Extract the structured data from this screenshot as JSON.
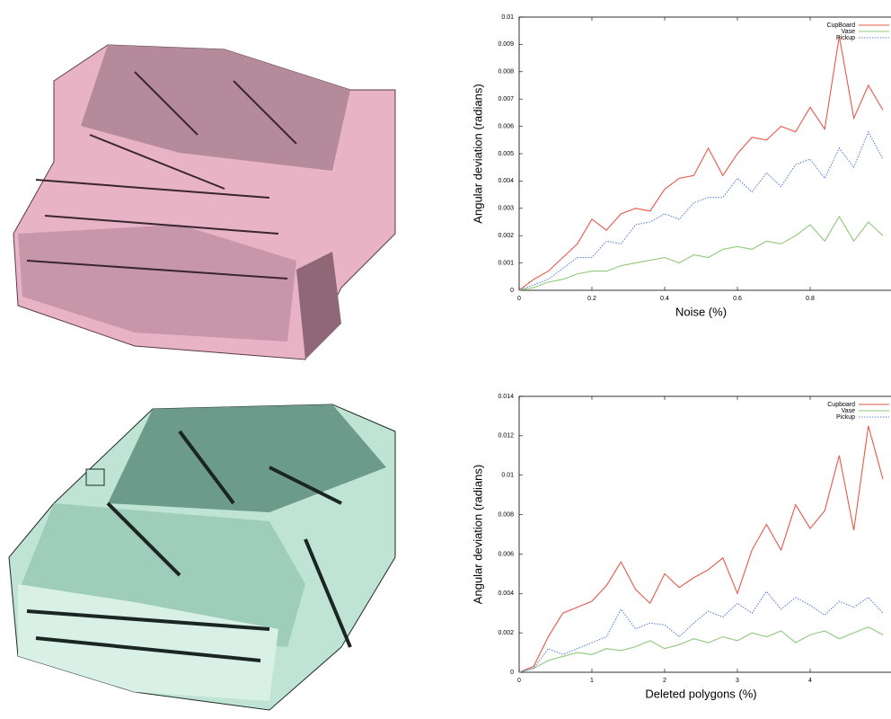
{
  "chart_data": [
    {
      "type": "line",
      "x_label": "Noise (%)",
      "y_label": "Angular deviation (radians)",
      "x": [
        0,
        0.04,
        0.08,
        0.12,
        0.16,
        0.2,
        0.24,
        0.28,
        0.32,
        0.36,
        0.4,
        0.44,
        0.48,
        0.52,
        0.56,
        0.6,
        0.64,
        0.68,
        0.72,
        0.76,
        0.8,
        0.84,
        0.88,
        0.92,
        0.96,
        1.0
      ],
      "xlim": [
        0,
        1
      ],
      "xticks": [
        0,
        0.2,
        0.4,
        0.6,
        0.8
      ],
      "ylim": [
        0,
        0.01
      ],
      "yticks": [
        0,
        0.001,
        0.002,
        0.003,
        0.004,
        0.005,
        0.006,
        0.007,
        0.008,
        0.009,
        0.01
      ],
      "legend": "top-right",
      "series": [
        {
          "name": "CupBoard",
          "color": "#e8574a",
          "line_style": "solid",
          "values": [
            0,
            0.0004,
            0.0007,
            0.0012,
            0.0017,
            0.0026,
            0.0022,
            0.0028,
            0.003,
            0.0029,
            0.0037,
            0.0041,
            0.0042,
            0.0052,
            0.0042,
            0.005,
            0.0056,
            0.0055,
            0.006,
            0.0058,
            0.0067,
            0.0059,
            0.0093,
            0.0063,
            0.0075,
            0.0066
          ]
        },
        {
          "name": "Vase",
          "color": "#8fc97a",
          "line_style": "solid",
          "values": [
            0,
            0.0001,
            0.0003,
            0.0004,
            0.0006,
            0.0007,
            0.0007,
            0.0009,
            0.001,
            0.0011,
            0.0012,
            0.001,
            0.0013,
            0.0012,
            0.0015,
            0.0016,
            0.0015,
            0.0018,
            0.0017,
            0.002,
            0.0024,
            0.0018,
            0.0027,
            0.0018,
            0.0025,
            0.002
          ]
        },
        {
          "name": "Pickup",
          "color": "#5b83dc",
          "line_style": "dotted",
          "values": [
            0,
            0.0002,
            0.0004,
            0.0008,
            0.0012,
            0.0012,
            0.0018,
            0.0017,
            0.0024,
            0.0025,
            0.0028,
            0.0026,
            0.0032,
            0.0034,
            0.0034,
            0.0041,
            0.0036,
            0.0043,
            0.0038,
            0.0046,
            0.0048,
            0.0041,
            0.0052,
            0.0045,
            0.0058,
            0.0048
          ]
        }
      ]
    },
    {
      "type": "line",
      "x_label": "Deleted polygons (%)",
      "y_label": "Angular deviation (radians)",
      "x": [
        0,
        0.2,
        0.4,
        0.6,
        0.8,
        1.0,
        1.2,
        1.4,
        1.6,
        1.8,
        2.0,
        2.2,
        2.4,
        2.6,
        2.8,
        3.0,
        3.2,
        3.4,
        3.6,
        3.8,
        4.0,
        4.2,
        4.4,
        4.6,
        4.8,
        5.0
      ],
      "xlim": [
        0,
        5
      ],
      "xticks": [
        0,
        1,
        2,
        3,
        4
      ],
      "ylim": [
        0,
        0.014
      ],
      "yticks": [
        0,
        0.002,
        0.004,
        0.006,
        0.008,
        0.01,
        0.012,
        0.014
      ],
      "legend": "top-right",
      "series": [
        {
          "name": "Cupboard",
          "color": "#e8574a",
          "line_style": "solid",
          "values": [
            0,
            0.0003,
            0.0018,
            0.003,
            0.0033,
            0.0036,
            0.0044,
            0.0056,
            0.0042,
            0.0035,
            0.005,
            0.0043,
            0.0048,
            0.0052,
            0.0058,
            0.004,
            0.0062,
            0.0075,
            0.0062,
            0.0085,
            0.0073,
            0.0082,
            0.011,
            0.0072,
            0.0125,
            0.0098
          ]
        },
        {
          "name": "Vase",
          "color": "#8fc97a",
          "line_style": "solid",
          "values": [
            0,
            0.0002,
            0.0006,
            0.0008,
            0.001,
            0.0009,
            0.0012,
            0.0011,
            0.0013,
            0.0016,
            0.0012,
            0.0014,
            0.0017,
            0.0015,
            0.0018,
            0.0016,
            0.002,
            0.0018,
            0.0021,
            0.0015,
            0.0019,
            0.0021,
            0.0017,
            0.002,
            0.0023,
            0.0019
          ]
        },
        {
          "name": "Pickup",
          "color": "#5b83dc",
          "line_style": "dotted",
          "values": [
            0,
            0.0002,
            0.0012,
            0.0009,
            0.0012,
            0.0015,
            0.0018,
            0.0032,
            0.0022,
            0.0025,
            0.0024,
            0.0018,
            0.0025,
            0.0031,
            0.0028,
            0.0035,
            0.003,
            0.0041,
            0.0032,
            0.0038,
            0.0034,
            0.0029,
            0.0036,
            0.0033,
            0.0038,
            0.003
          ]
        }
      ]
    }
  ]
}
